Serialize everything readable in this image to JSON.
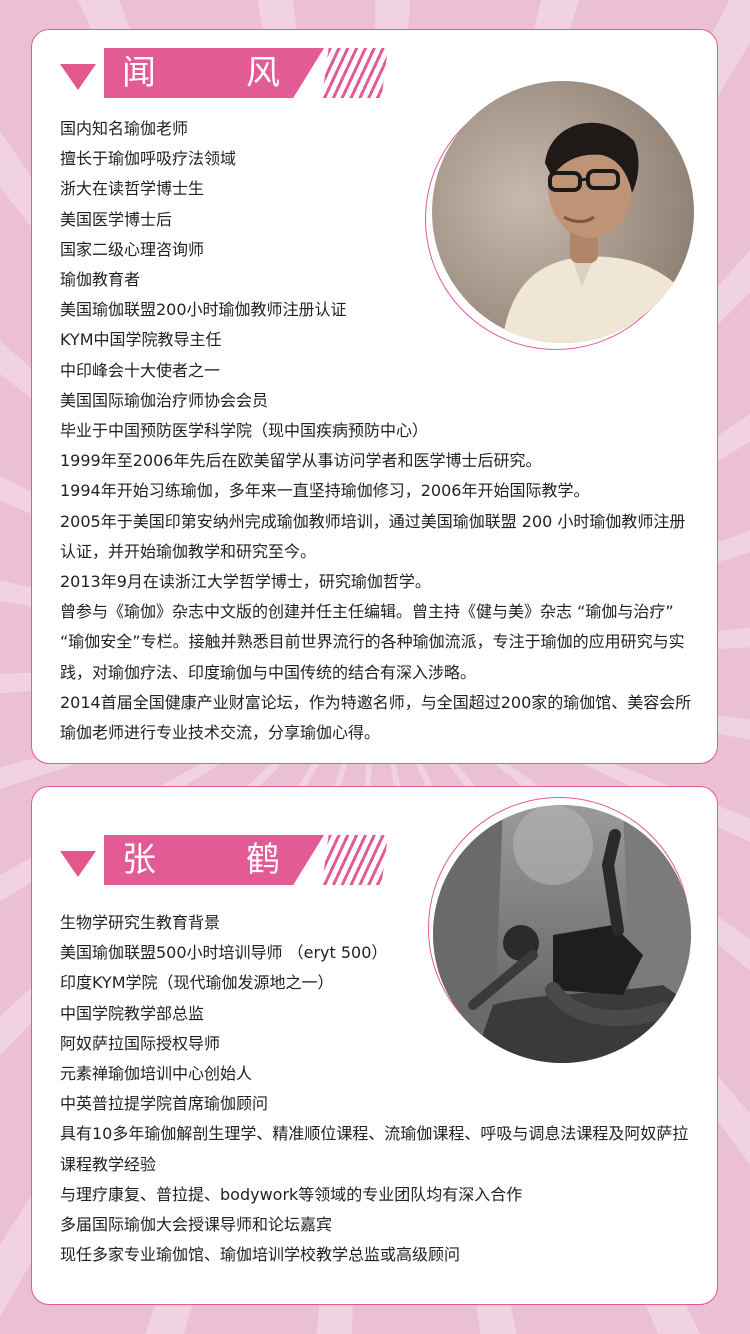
{
  "profiles": [
    {
      "name": "闻　风",
      "bio": [
        "国内知名瑜伽老师",
        "擅长于瑜伽呼吸疗法领域",
        "浙大在读哲学博士生",
        "美国医学博士后",
        "国家二级心理咨询师",
        "瑜伽教育者",
        "美国瑜伽联盟200小时瑜伽教师注册认证",
        "KYM中国学院教导主任",
        "中印峰会十大使者之一",
        "美国国际瑜伽治疗师协会会员",
        "毕业于中国预防医学科学院（现中国疾病预防中心）",
        "1999年至2006年先后在欧美留学从事访问学者和医学博士后研究。",
        "1994年开始习练瑜伽，多年来一直坚持瑜伽修习，2006年开始国际教学。",
        "2005年于美国印第安纳州完成瑜伽教师培训，通过美国瑜伽联盟 200 小时瑜伽教师注册认证，并开始瑜伽教学和研究至今。",
        "2013年9月在读浙江大学哲学博士，研究瑜伽哲学。",
        "曾参与《瑜伽》杂志中文版的创建并任主任编辑。曾主持《健与美》杂志 “瑜伽与治疗” “瑜伽安全”专栏。接触并熟悉目前世界流行的各种瑜伽流派，专注于瑜伽的应用研究与实践，对瑜伽疗法、印度瑜伽与中国传统的结合有深入涉略。",
        "2014首届全国健康产业财富论坛，作为特邀名师，与全国超过200家的瑜伽馆、美容会所瑜伽老师进行专业技术交流，分享瑜伽心得。"
      ]
    },
    {
      "name": "张　鹤",
      "bio": [
        "生物学研究生教育背景",
        "美国瑜伽联盟500小时培训导师 （eryt 500）",
        "印度KYM学院（现代瑜伽发源地之一）",
        "中国学院教学部总监",
        "阿奴萨拉国际授权导师",
        "元素禅瑜伽培训中心创始人",
        "中英普拉提学院首席瑜伽顾问",
        "具有10多年瑜伽解剖生理学、精准顺位课程、流瑜伽课程、呼吸与调息法课程及阿奴萨拉课程教学经验",
        "与理疗康复、普拉提、bodywork等领域的专业团队均有深入合作",
        "多届国际瑜伽大会授课导师和论坛嘉宾",
        "现任多家专业瑜伽馆、瑜伽培训学校教学总监或高级顾问"
      ]
    }
  ],
  "colors": {
    "accent": "#e35b94",
    "background": "#ebc0d4",
    "card": "#ffffff",
    "text": "#222222"
  }
}
